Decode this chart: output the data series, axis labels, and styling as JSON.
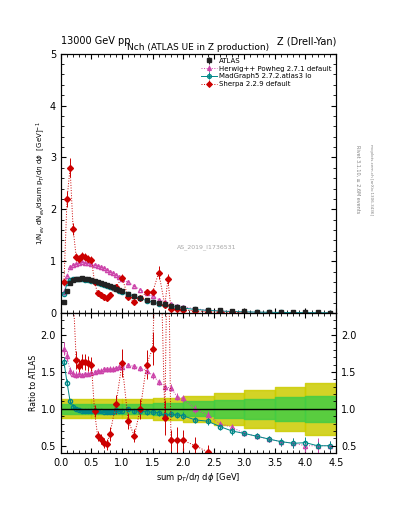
{
  "title_top": "13000 GeV pp",
  "title_right": "Z (Drell-Yan)",
  "plot_title": "Nch (ATLAS UE in Z production)",
  "ylabel_main": "1/N$_{ev}$ dN$_{ev}$/dsum p$_{T}$/d$\\eta$ d$\\phi$  [GeV]$^{-1}$",
  "ylabel_ratio": "Ratio to ATLAS",
  "xlabel": "sum p$_{T}$/d$\\eta$ d$\\phi$ [GeV]",
  "watermark": "AS_2019_I1736531",
  "rivet_text": "Rivet 3.1.10, ≥ 2.6M events",
  "mcplots_text": "mcplots.cern.ch [arXiv:1306.3436]",
  "atlas_x": [
    0.05,
    0.1,
    0.15,
    0.2,
    0.25,
    0.3,
    0.35,
    0.4,
    0.45,
    0.5,
    0.55,
    0.6,
    0.65,
    0.7,
    0.75,
    0.8,
    0.85,
    0.9,
    0.95,
    1.0,
    1.1,
    1.2,
    1.3,
    1.4,
    1.5,
    1.6,
    1.7,
    1.8,
    1.9,
    2.0,
    2.2,
    2.4,
    2.6,
    2.8,
    3.0,
    3.2,
    3.4,
    3.6,
    3.8,
    4.0,
    4.2,
    4.4
  ],
  "atlas_y": [
    0.22,
    0.42,
    0.58,
    0.63,
    0.65,
    0.66,
    0.67,
    0.66,
    0.65,
    0.64,
    0.62,
    0.6,
    0.58,
    0.56,
    0.54,
    0.52,
    0.5,
    0.47,
    0.44,
    0.42,
    0.37,
    0.33,
    0.29,
    0.25,
    0.22,
    0.19,
    0.17,
    0.14,
    0.12,
    0.105,
    0.08,
    0.06,
    0.05,
    0.04,
    0.033,
    0.027,
    0.022,
    0.018,
    0.015,
    0.012,
    0.01,
    0.008
  ],
  "atlas_yerr": [
    0.015,
    0.02,
    0.02,
    0.02,
    0.02,
    0.015,
    0.015,
    0.015,
    0.015,
    0.015,
    0.015,
    0.015,
    0.015,
    0.015,
    0.015,
    0.015,
    0.015,
    0.01,
    0.01,
    0.01,
    0.01,
    0.01,
    0.01,
    0.01,
    0.01,
    0.008,
    0.008,
    0.007,
    0.006,
    0.005,
    0.004,
    0.003,
    0.003,
    0.002,
    0.002,
    0.002,
    0.001,
    0.001,
    0.001,
    0.001,
    0.001,
    0.001
  ],
  "herwig_x": [
    0.05,
    0.1,
    0.15,
    0.2,
    0.25,
    0.3,
    0.35,
    0.4,
    0.45,
    0.5,
    0.55,
    0.6,
    0.65,
    0.7,
    0.75,
    0.8,
    0.85,
    0.9,
    0.95,
    1.0,
    1.1,
    1.2,
    1.3,
    1.4,
    1.5,
    1.6,
    1.7,
    1.8,
    1.9,
    2.0,
    2.2,
    2.4,
    2.6,
    2.8,
    3.0,
    3.2,
    3.4,
    3.6,
    3.8,
    4.0,
    4.2,
    4.4
  ],
  "herwig_y": [
    0.4,
    0.72,
    0.88,
    0.93,
    0.95,
    0.97,
    0.98,
    0.97,
    0.96,
    0.95,
    0.93,
    0.91,
    0.88,
    0.86,
    0.83,
    0.8,
    0.77,
    0.73,
    0.69,
    0.66,
    0.59,
    0.52,
    0.45,
    0.38,
    0.32,
    0.26,
    0.22,
    0.18,
    0.14,
    0.12,
    0.08,
    0.055,
    0.04,
    0.03,
    0.022,
    0.017,
    0.013,
    0.01,
    0.008,
    0.006,
    0.005,
    0.004
  ],
  "herwig_yerr": [
    0.02,
    0.03,
    0.03,
    0.03,
    0.03,
    0.02,
    0.02,
    0.02,
    0.02,
    0.02,
    0.02,
    0.02,
    0.02,
    0.02,
    0.02,
    0.02,
    0.02,
    0.015,
    0.015,
    0.015,
    0.012,
    0.012,
    0.01,
    0.01,
    0.01,
    0.008,
    0.008,
    0.007,
    0.006,
    0.005,
    0.004,
    0.003,
    0.002,
    0.002,
    0.001,
    0.001,
    0.001,
    0.001,
    0.001,
    0.001,
    0.001,
    0.0005
  ],
  "madgraph_x": [
    0.05,
    0.1,
    0.15,
    0.2,
    0.25,
    0.3,
    0.35,
    0.4,
    0.45,
    0.5,
    0.55,
    0.6,
    0.65,
    0.7,
    0.75,
    0.8,
    0.85,
    0.9,
    0.95,
    1.0,
    1.1,
    1.2,
    1.3,
    1.4,
    1.5,
    1.6,
    1.7,
    1.8,
    1.9,
    2.0,
    2.2,
    2.4,
    2.6,
    2.8,
    3.0,
    3.2,
    3.4,
    3.6,
    3.8,
    4.0,
    4.2,
    4.4
  ],
  "madgraph_y": [
    0.36,
    0.57,
    0.64,
    0.65,
    0.65,
    0.65,
    0.65,
    0.64,
    0.63,
    0.62,
    0.6,
    0.58,
    0.56,
    0.54,
    0.52,
    0.5,
    0.48,
    0.46,
    0.43,
    0.41,
    0.37,
    0.32,
    0.28,
    0.24,
    0.21,
    0.18,
    0.155,
    0.13,
    0.11,
    0.095,
    0.068,
    0.05,
    0.038,
    0.028,
    0.022,
    0.017,
    0.013,
    0.01,
    0.008,
    0.0065,
    0.005,
    0.004
  ],
  "madgraph_yerr": [
    0.015,
    0.02,
    0.02,
    0.02,
    0.02,
    0.015,
    0.015,
    0.015,
    0.015,
    0.015,
    0.015,
    0.015,
    0.015,
    0.015,
    0.015,
    0.015,
    0.015,
    0.01,
    0.01,
    0.01,
    0.01,
    0.01,
    0.01,
    0.01,
    0.008,
    0.008,
    0.007,
    0.006,
    0.005,
    0.005,
    0.003,
    0.003,
    0.002,
    0.002,
    0.001,
    0.001,
    0.001,
    0.001,
    0.001,
    0.001,
    0.0005,
    0.0005
  ],
  "sherpa_x": [
    0.05,
    0.1,
    0.15,
    0.2,
    0.25,
    0.3,
    0.35,
    0.4,
    0.45,
    0.5,
    0.55,
    0.6,
    0.65,
    0.7,
    0.75,
    0.8,
    0.9,
    1.0,
    1.1,
    1.2,
    1.3,
    1.4,
    1.5,
    1.6,
    1.7,
    1.75,
    1.8,
    1.9,
    2.0,
    2.2,
    2.4,
    2.6,
    2.8,
    3.0
  ],
  "sherpa_y": [
    0.6,
    2.2,
    2.8,
    1.62,
    1.08,
    1.04,
    1.1,
    1.08,
    1.05,
    1.02,
    0.6,
    0.38,
    0.34,
    0.3,
    0.28,
    0.34,
    0.5,
    0.68,
    0.31,
    0.21,
    0.29,
    0.4,
    0.4,
    0.78,
    0.15,
    0.65,
    0.08,
    0.07,
    0.06,
    0.04,
    0.025,
    0.015,
    0.01,
    0.007
  ],
  "sherpa_yerr": [
    0.05,
    0.15,
    0.18,
    0.12,
    0.08,
    0.07,
    0.07,
    0.07,
    0.07,
    0.07,
    0.05,
    0.04,
    0.04,
    0.04,
    0.04,
    0.05,
    0.06,
    0.08,
    0.04,
    0.03,
    0.04,
    0.05,
    0.05,
    0.12,
    0.04,
    0.1,
    0.02,
    0.02,
    0.015,
    0.01,
    0.006,
    0.004,
    0.003,
    0.002
  ],
  "ylim_main": [
    0,
    5
  ],
  "ylim_ratio": [
    0.4,
    2.3
  ],
  "xlim": [
    0.0,
    4.5
  ],
  "color_atlas": "#222222",
  "color_herwig": "#cc44aa",
  "color_madgraph": "#008888",
  "color_sherpa": "#cc0000",
  "color_green_band": "#44cc44",
  "color_yellow_band": "#cccc00"
}
